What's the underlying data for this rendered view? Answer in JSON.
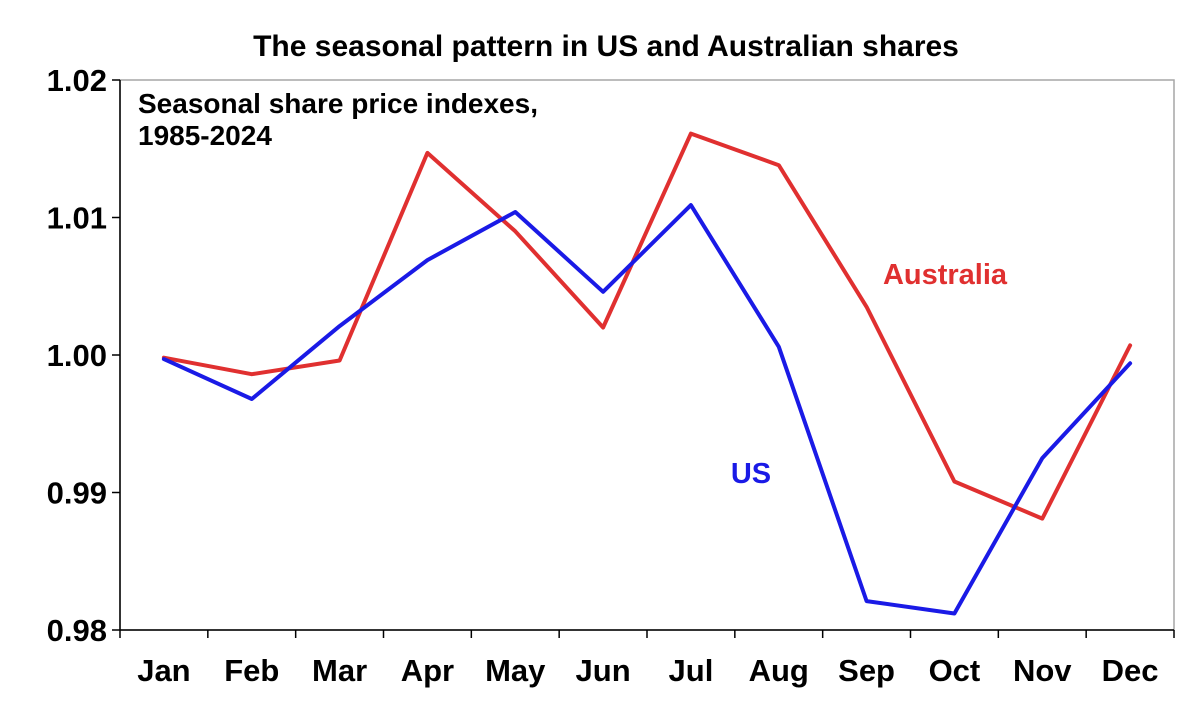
{
  "chart_data": {
    "type": "line",
    "title": "The seasonal pattern in US and Australian shares",
    "annotation": [
      "Seasonal share price indexes,",
      "1985-2024"
    ],
    "categories": [
      "Jan",
      "Feb",
      "Mar",
      "Apr",
      "May",
      "Jun",
      "Jul",
      "Aug",
      "Sep",
      "Oct",
      "Nov",
      "Dec"
    ],
    "ylim": [
      0.98,
      1.02
    ],
    "yticks": [
      "1.02",
      "1.01",
      "1.00",
      "0.99",
      "0.98"
    ],
    "grid": false,
    "series": [
      {
        "name": "Australia",
        "color": "#e03030",
        "values": [
          0.9998,
          0.9986,
          0.9996,
          1.0147,
          1.009,
          1.002,
          1.0161,
          1.0138,
          1.0035,
          0.9908,
          0.9881,
          1.0007
        ]
      },
      {
        "name": "US",
        "color": "#1a1ae6",
        "values": [
          0.9997,
          0.9968,
          1.0021,
          1.0069,
          1.0104,
          1.0046,
          1.0109,
          1.0006,
          0.9821,
          0.9812,
          0.9925,
          0.9994
        ]
      }
    ]
  }
}
